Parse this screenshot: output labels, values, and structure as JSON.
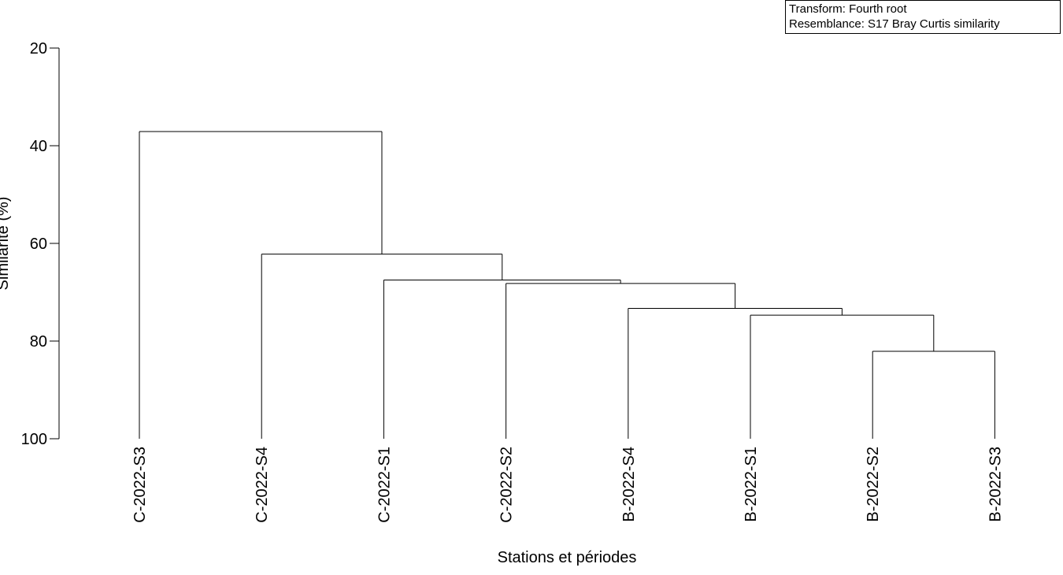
{
  "info_box": {
    "transform": "Transform: Fourth root",
    "resemblance": "Resemblance: S17 Bray Curtis similarity"
  },
  "chart_data": {
    "type": "dendrogram",
    "xlabel": "Stations et périodes",
    "ylabel": "Similarité (%)",
    "ylim": [
      20,
      100
    ],
    "y_ticks": [
      20,
      40,
      60,
      80,
      100
    ],
    "y_inverted": true,
    "leaves": [
      "C-2022-S3",
      "C-2022-S4",
      "C-2022-S1",
      "C-2022-S2",
      "B-2022-S4",
      "B-2022-S1",
      "B-2022-S2",
      "B-2022-S3"
    ],
    "merges": [
      {
        "id": "m1",
        "left": "B-2022-S2",
        "right": "B-2022-S3",
        "similarity": 82.1
      },
      {
        "id": "m2",
        "left": "B-2022-S1",
        "right": "m1",
        "similarity": 74.7
      },
      {
        "id": "m3",
        "left": "B-2022-S4",
        "right": "m2",
        "similarity": 73.3
      },
      {
        "id": "m4",
        "left": "C-2022-S2",
        "right": "m3",
        "similarity": 68.2
      },
      {
        "id": "m5",
        "left": "C-2022-S1",
        "right": "m4",
        "similarity": 67.5
      },
      {
        "id": "m6",
        "left": "C-2022-S4",
        "right": "m5",
        "similarity": 62.2
      },
      {
        "id": "m7",
        "left": "C-2022-S3",
        "right": "m6",
        "similarity": 37.1
      }
    ]
  }
}
